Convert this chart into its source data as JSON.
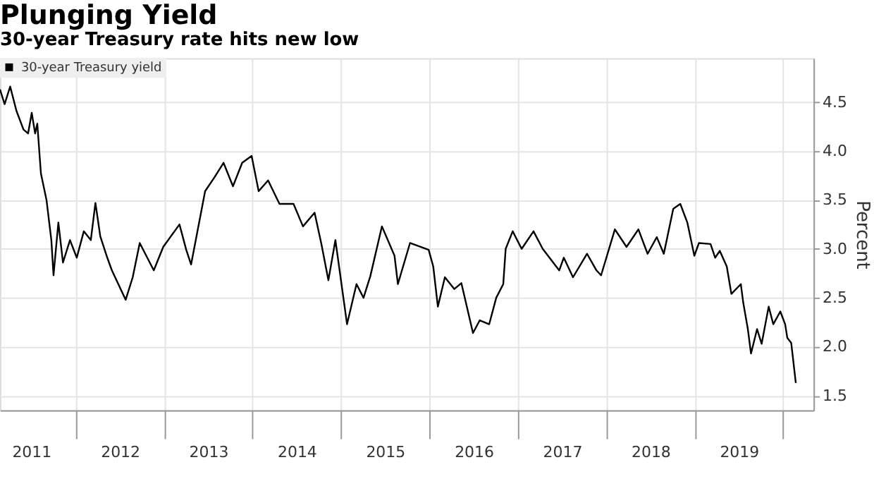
{
  "chart_data": {
    "type": "line",
    "title": "Plunging Yield",
    "subtitle": "30-year Treasury rate hits new low",
    "ylabel": "Percent",
    "x": [
      "2011-02-23",
      "2011-03-14",
      "2011-04-06",
      "2011-05-02",
      "2011-05-31",
      "2011-06-19",
      "2011-07-04",
      "2011-07-18",
      "2011-07-27",
      "2011-08-11",
      "2011-09-03",
      "2011-09-23",
      "2011-10-02",
      "2011-10-22",
      "2011-11-10",
      "2011-12-09",
      "2012-01-06",
      "2012-02-04",
      "2012-03-04",
      "2012-03-23",
      "2012-04-12",
      "2012-05-11",
      "2012-05-30",
      "2012-07-26",
      "2012-08-24",
      "2012-09-22",
      "2012-11-19",
      "2012-12-28",
      "2013-03-05",
      "2013-04-02",
      "2013-04-22",
      "2013-06-19",
      "2013-07-27",
      "2013-09-03",
      "2013-10-12",
      "2013-11-19",
      "2013-12-28",
      "2014-01-26",
      "2014-03-06",
      "2014-04-22",
      "2014-06-19",
      "2014-07-28",
      "2014-09-14",
      "2014-10-12",
      "2014-11-10",
      "2014-12-09",
      "2015-01-26",
      "2015-03-06",
      "2015-04-04",
      "2015-05-02",
      "2015-06-19",
      "2015-08-10",
      "2015-08-24",
      "2015-10-13",
      "2015-12-29",
      "2016-01-17",
      "2016-02-05",
      "2016-03-05",
      "2016-04-13",
      "2016-05-12",
      "2016-06-29",
      "2016-07-27",
      "2016-09-04",
      "2016-10-03",
      "2016-11-01",
      "2016-11-11",
      "2016-12-10",
      "2017-01-16",
      "2017-03-06",
      "2017-04-13",
      "2017-06-20",
      "2017-07-09",
      "2017-08-16",
      "2017-10-13",
      "2017-11-21",
      "2017-12-10",
      "2018-02-05",
      "2018-03-25",
      "2018-05-13",
      "2018-06-20",
      "2018-07-28",
      "2018-08-26",
      "2018-10-04",
      "2018-11-02",
      "2018-12-01",
      "2018-12-30",
      "2019-01-18",
      "2019-03-07",
      "2019-03-26",
      "2019-04-14",
      "2019-05-13",
      "2019-06-01",
      "2019-07-10",
      "2019-07-20",
      "2019-08-08",
      "2019-08-21",
      "2019-09-15",
      "2019-10-04",
      "2019-11-02",
      "2019-11-21",
      "2019-12-20",
      "2020-01-09",
      "2020-01-18",
      "2020-02-03",
      "2020-02-22"
    ],
    "series": [
      {
        "name": "30-year Treasury yield",
        "color": "#000000",
        "values": [
          4.63,
          4.48,
          4.66,
          4.41,
          4.22,
          4.18,
          4.39,
          4.18,
          4.28,
          3.77,
          3.5,
          3.09,
          2.73,
          3.27,
          2.86,
          3.09,
          2.91,
          3.18,
          3.09,
          3.47,
          3.13,
          2.91,
          2.78,
          2.48,
          2.71,
          3.06,
          2.78,
          3.02,
          3.25,
          2.99,
          2.84,
          3.59,
          3.73,
          3.88,
          3.64,
          3.88,
          3.95,
          3.59,
          3.7,
          3.46,
          3.46,
          3.23,
          3.37,
          3.05,
          2.68,
          3.09,
          2.23,
          2.64,
          2.5,
          2.72,
          3.23,
          2.93,
          2.64,
          3.06,
          2.99,
          2.82,
          2.41,
          2.71,
          2.59,
          2.65,
          2.14,
          2.27,
          2.23,
          2.5,
          2.64,
          3.0,
          3.18,
          3.0,
          3.18,
          3.0,
          2.78,
          2.91,
          2.71,
          2.95,
          2.78,
          2.73,
          3.2,
          3.02,
          3.2,
          2.95,
          3.12,
          2.95,
          3.41,
          3.46,
          3.27,
          2.93,
          3.06,
          3.05,
          2.91,
          2.98,
          2.82,
          2.54,
          2.64,
          2.45,
          2.18,
          1.93,
          2.18,
          2.03,
          2.41,
          2.23,
          2.36,
          2.23,
          2.09,
          2.04,
          1.63
        ]
      }
    ],
    "xlim": [
      "2011-02-23",
      "2020-05-05"
    ],
    "xticks": [
      {
        "value": "2011-07-02",
        "label": "2011"
      },
      {
        "value": "2012-01-01",
        "label": null
      },
      {
        "value": "2012-07-02",
        "label": "2012"
      },
      {
        "value": "2013-01-01",
        "label": null
      },
      {
        "value": "2013-07-02",
        "label": "2013"
      },
      {
        "value": "2014-01-01",
        "label": null
      },
      {
        "value": "2014-07-02",
        "label": "2014"
      },
      {
        "value": "2015-01-01",
        "label": null
      },
      {
        "value": "2015-07-02",
        "label": "2015"
      },
      {
        "value": "2016-01-01",
        "label": null
      },
      {
        "value": "2016-07-02",
        "label": "2016"
      },
      {
        "value": "2017-01-01",
        "label": null
      },
      {
        "value": "2017-07-02",
        "label": "2017"
      },
      {
        "value": "2018-01-01",
        "label": null
      },
      {
        "value": "2018-07-02",
        "label": "2018"
      },
      {
        "value": "2019-01-01",
        "label": null
      },
      {
        "value": "2019-07-02",
        "label": "2019"
      },
      {
        "value": "2020-01-01",
        "label": null
      }
    ],
    "ylim": [
      1.35,
      4.95
    ],
    "yticks": [
      {
        "value": 1.5,
        "label": "1.5"
      },
      {
        "value": 2.0,
        "label": "2.0"
      },
      {
        "value": 2.5,
        "label": "2.5"
      },
      {
        "value": 3.0,
        "label": "3.0"
      },
      {
        "value": 3.5,
        "label": "3.5"
      },
      {
        "value": 4.0,
        "label": "4.0"
      },
      {
        "value": 4.5,
        "label": "4.5"
      }
    ],
    "grid": true,
    "legend": "top left",
    "line_style": "solid",
    "marker": "none"
  }
}
